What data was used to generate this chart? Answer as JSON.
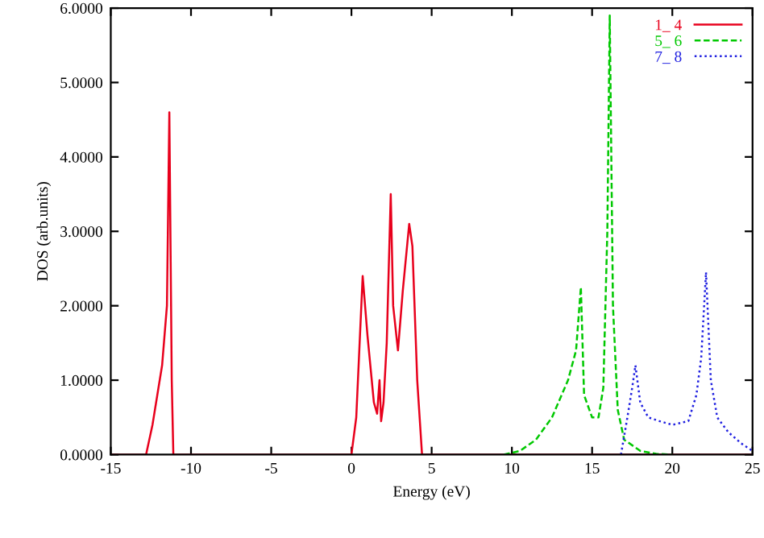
{
  "chart_data": {
    "type": "line",
    "xlabel": "Energy (eV)",
    "ylabel": "DOS (arb.units)",
    "xlim": [
      -15,
      25
    ],
    "xticks": [
      -15,
      -10,
      -5,
      0,
      5,
      10,
      15,
      20,
      25
    ],
    "ylim": [
      0,
      6
    ],
    "yticks": [
      {
        "value": 0,
        "label": "0.0000"
      },
      {
        "value": 1,
        "label": "1.0000"
      },
      {
        "value": 2,
        "label": "2.0000"
      },
      {
        "value": 3,
        "label": "3.0000"
      },
      {
        "value": 4,
        "label": "4.0000"
      },
      {
        "value": 5,
        "label": "5.0000"
      },
      {
        "value": 6,
        "label": "6.0000"
      }
    ],
    "grid": false,
    "legend": "top right",
    "series": [
      {
        "name": "1_ 4",
        "color": "#e8001c",
        "line_style": "solid",
        "x": [
          -15,
          -12.8,
          -12.4,
          -12.1,
          -11.8,
          -11.5,
          -11.35,
          -11.2,
          -11.1,
          0,
          0.3,
          0.7,
          1.0,
          1.4,
          1.6,
          1.75,
          1.85,
          2.0,
          2.2,
          2.45,
          2.6,
          2.9,
          3.2,
          3.6,
          3.8,
          4.1,
          4.4,
          25
        ],
        "values": [
          0,
          0,
          0.4,
          0.8,
          1.2,
          2.0,
          4.6,
          1.0,
          0,
          0,
          0.5,
          2.4,
          1.6,
          0.7,
          0.55,
          1.0,
          0.45,
          0.7,
          1.5,
          3.5,
          2.0,
          1.4,
          2.2,
          3.1,
          2.8,
          1.0,
          0,
          0
        ]
      },
      {
        "name": "5_ 6",
        "color": "#00c800",
        "line_style": "dashed",
        "x": [
          9.5,
          10.5,
          11.5,
          12.5,
          13.5,
          14.0,
          14.3,
          14.5,
          15.0,
          15.4,
          15.7,
          15.95,
          16.1,
          16.3,
          16.6,
          17.0,
          18.0,
          19.0,
          20.0
        ],
        "values": [
          0,
          0.05,
          0.2,
          0.5,
          1.0,
          1.4,
          2.25,
          0.8,
          0.5,
          0.5,
          0.9,
          3.0,
          5.9,
          2.0,
          0.6,
          0.2,
          0.05,
          0.01,
          0
        ]
      },
      {
        "name": "7_ 8",
        "color": "#2020e0",
        "line_style": "dotted",
        "x": [
          16.8,
          17.2,
          17.5,
          17.7,
          18.0,
          18.5,
          19.2,
          20.0,
          21.0,
          21.5,
          21.8,
          22.1,
          22.4,
          22.8,
          23.5,
          24.3,
          25
        ],
        "values": [
          0,
          0.5,
          0.9,
          1.2,
          0.7,
          0.5,
          0.45,
          0.4,
          0.45,
          0.8,
          1.3,
          2.45,
          1.0,
          0.5,
          0.3,
          0.15,
          0.05
        ]
      }
    ]
  }
}
